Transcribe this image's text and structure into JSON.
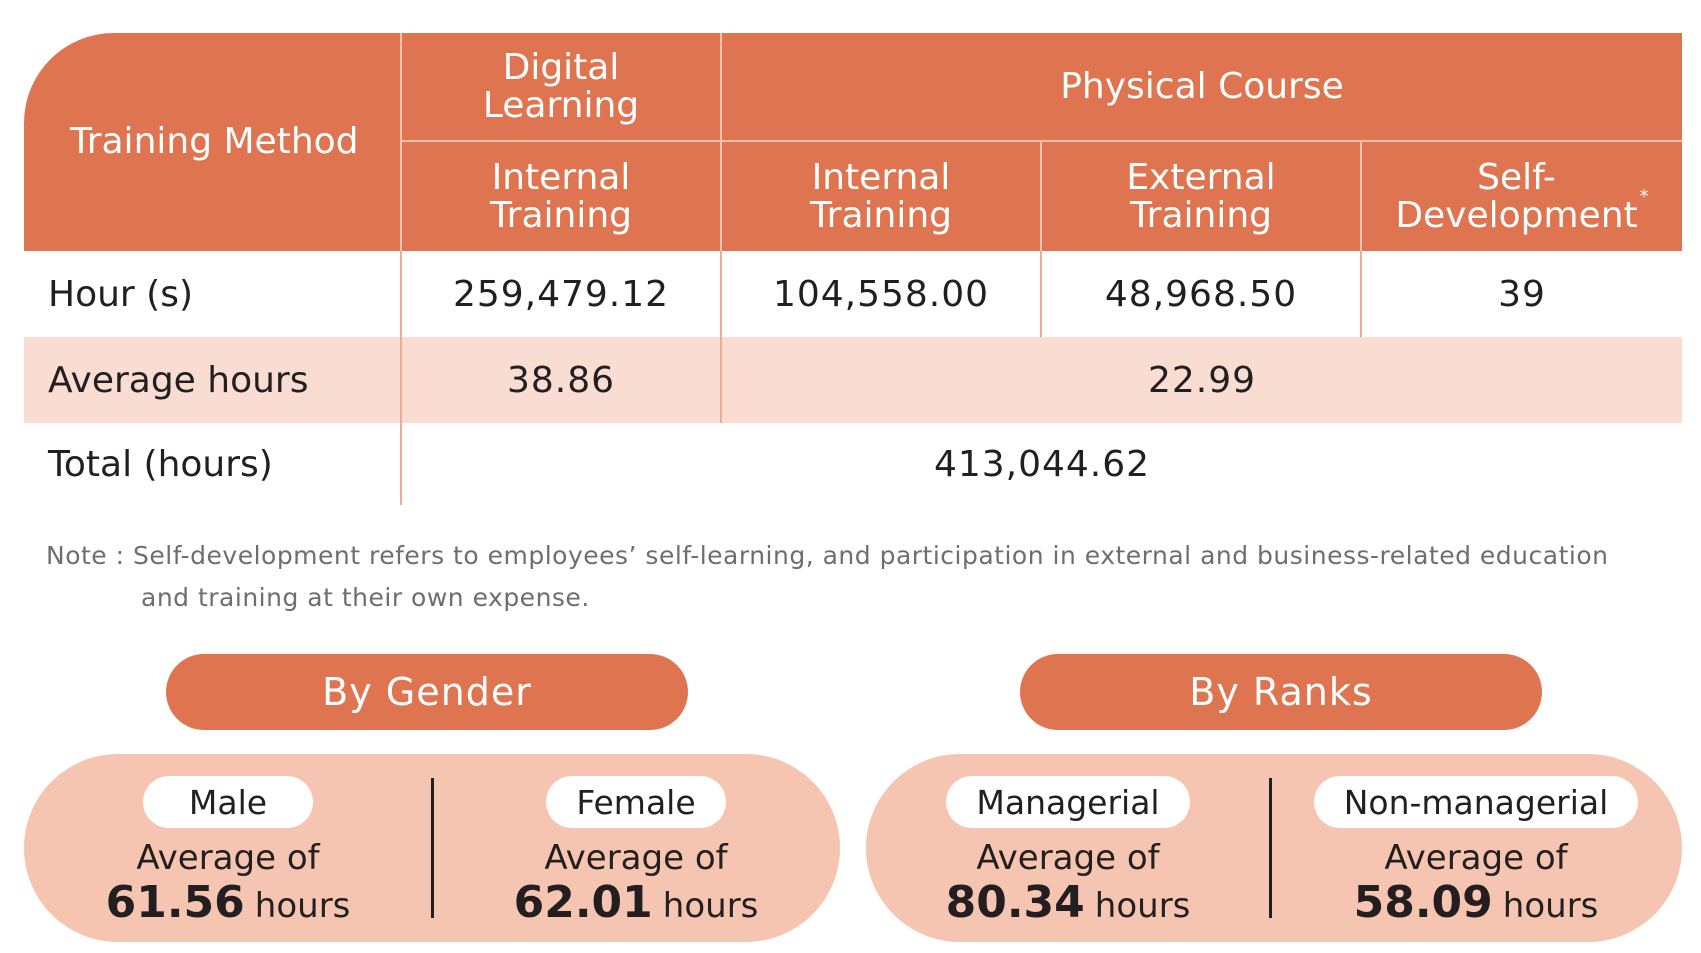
{
  "table": {
    "header": {
      "training_method": "Training Method",
      "digital_learning": "Digital\nLearning",
      "physical_course": "Physical Course",
      "digital_internal": "Internal\nTraining",
      "physical_internal": "Internal\nTraining",
      "physical_external": "External\nTraining",
      "self_development": "Self-\nDevelopment",
      "self_development_mark": "*"
    },
    "rows": {
      "hours": {
        "label": "Hour (s)",
        "digital_internal": "259,479.12",
        "physical_internal": "104,558.00",
        "physical_external": "48,968.50",
        "self_development": "39"
      },
      "average": {
        "label": "Average hours",
        "digital": "38.86",
        "physical": "22.99"
      },
      "total": {
        "label": "Total (hours)",
        "value": "413,044.62"
      }
    }
  },
  "note": {
    "line1": "Note : Self-development refers to employees’ self-learning, and participation in external and business-related education",
    "line2": "and training at their own expense."
  },
  "by_gender": {
    "title": "By Gender",
    "male": {
      "label": "Male",
      "avg_prefix": "Average of",
      "value": "61.56",
      "unit": "hours"
    },
    "female": {
      "label": "Female",
      "avg_prefix": "Average of",
      "value": "62.01",
      "unit": "hours"
    }
  },
  "by_ranks": {
    "title": "By Ranks",
    "managerial": {
      "label": "Managerial",
      "avg_prefix": "Average of",
      "value": "80.34",
      "unit": "hours"
    },
    "non_managerial": {
      "label": "Non-managerial",
      "avg_prefix": "Average of",
      "value": "58.09",
      "unit": "hours"
    }
  },
  "colors": {
    "accent": "#df7450",
    "light_row": "#f9ddd2",
    "capsule": "#f6c5b2"
  }
}
